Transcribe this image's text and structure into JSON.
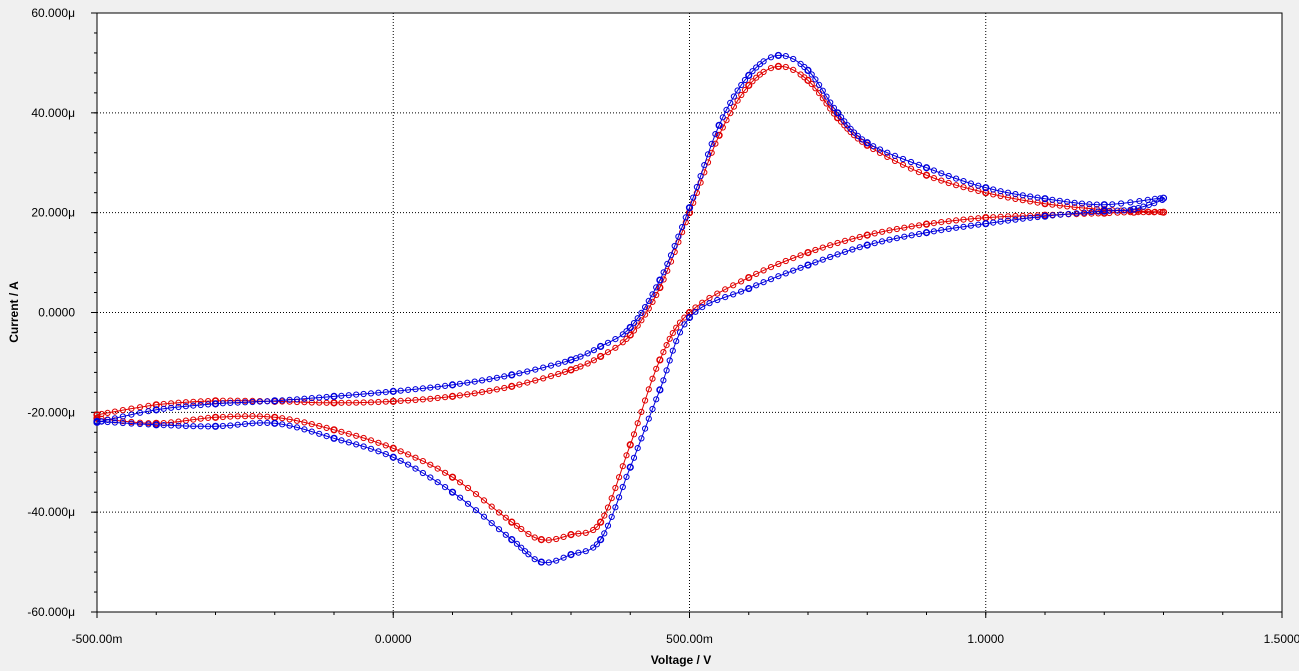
{
  "chart_data": {
    "type": "scatter",
    "xlabel": "Voltage / V",
    "ylabel": "Current / A",
    "xlim": [
      -0.5,
      1.5
    ],
    "ylim": [
      -6e-05,
      6e-05
    ],
    "x_ticks": [
      {
        "value": -0.5,
        "label": "-500.00m"
      },
      {
        "value": 0,
        "label": "0.0000"
      },
      {
        "value": 0.5,
        "label": "500.00m"
      },
      {
        "value": 1.0,
        "label": "1.0000"
      },
      {
        "value": 1.5,
        "label": "1.5000"
      }
    ],
    "y_ticks": [
      {
        "value": 6e-05,
        "label": "60.000μ"
      },
      {
        "value": 4e-05,
        "label": "40.000μ"
      },
      {
        "value": 2e-05,
        "label": "20.000μ"
      },
      {
        "value": 0,
        "label": "0.0000"
      },
      {
        "value": -2e-05,
        "label": "-20.000μ"
      },
      {
        "value": -4e-05,
        "label": "-40.000μ"
      },
      {
        "value": -6e-05,
        "label": "-60.000μ"
      }
    ],
    "grid": true,
    "series": [
      {
        "color": "#e00000",
        "x": [
          -0.5,
          -0.4,
          -0.3,
          -0.2,
          -0.1,
          0.0,
          0.1,
          0.2,
          0.3,
          0.35,
          0.4,
          0.45,
          0.5,
          0.55,
          0.6,
          0.65,
          0.7,
          0.75,
          0.8,
          0.9,
          1.0,
          1.1,
          1.2,
          1.3,
          1.25,
          1.2,
          1.1,
          1.0,
          0.9,
          0.8,
          0.7,
          0.6,
          0.5,
          0.45,
          0.4,
          0.35,
          0.3,
          0.25,
          0.2,
          0.1,
          0.0,
          -0.1,
          -0.2,
          -0.3,
          -0.4,
          -0.5
        ],
        "y": [
          -2.05e-05,
          -1.85e-05,
          -1.77e-05,
          -1.78e-05,
          -1.81e-05,
          -1.78e-05,
          -1.68e-05,
          -1.48e-05,
          -1.15e-05,
          -8.8e-06,
          -4.5e-06,
          5e-06,
          2e-05,
          3.55e-05,
          4.55e-05,
          4.93e-05,
          4.65e-05,
          3.9e-05,
          3.35e-05,
          2.75e-05,
          2.4e-05,
          2.18e-05,
          2.06e-05,
          2.01e-05,
          2.01e-05,
          1.99e-05,
          1.95e-05,
          1.9e-05,
          1.77e-05,
          1.55e-05,
          1.2e-05,
          7e-06,
          0.0,
          -9.5e-06,
          -2.65e-05,
          -4.2e-05,
          -4.45e-05,
          -4.55e-05,
          -4.2e-05,
          -3.3e-05,
          -2.72e-05,
          -2.35e-05,
          -2.1e-05,
          -2.1e-05,
          -2.22e-05,
          -2.12e-05
        ]
      },
      {
        "color": "#0000dd",
        "x": [
          -0.5,
          -0.4,
          -0.3,
          -0.2,
          -0.1,
          0.0,
          0.1,
          0.2,
          0.3,
          0.35,
          0.4,
          0.45,
          0.5,
          0.55,
          0.6,
          0.65,
          0.7,
          0.75,
          0.8,
          0.9,
          1.0,
          1.1,
          1.2,
          1.3,
          1.25,
          1.2,
          1.1,
          1.0,
          0.9,
          0.8,
          0.7,
          0.6,
          0.5,
          0.45,
          0.4,
          0.35,
          0.3,
          0.25,
          0.2,
          0.1,
          0.0,
          -0.1,
          -0.2,
          -0.3,
          -0.4,
          -0.5
        ],
        "y": [
          -2.2e-05,
          -1.95e-05,
          -1.83e-05,
          -1.77e-05,
          -1.68e-05,
          -1.58e-05,
          -1.45e-05,
          -1.25e-05,
          -9.5e-06,
          -6.8e-06,
          -3e-06,
          6.5e-06,
          2.1e-05,
          3.75e-05,
          4.75e-05,
          5.15e-05,
          4.85e-05,
          4e-05,
          3.4e-05,
          2.9e-05,
          2.5e-05,
          2.28e-05,
          2.16e-05,
          2.29e-05,
          2.07e-05,
          2.03e-05,
          1.93e-05,
          1.78e-05,
          1.6e-05,
          1.35e-05,
          9.5e-06,
          4.8e-06,
          -1e-06,
          -1.55e-05,
          -3.1e-05,
          -4.55e-05,
          -4.85e-05,
          -5e-05,
          -4.55e-05,
          -3.6e-05,
          -2.9e-05,
          -2.52e-05,
          -2.22e-05,
          -2.28e-05,
          -2.25e-05,
          -2.18e-05
        ]
      }
    ]
  }
}
